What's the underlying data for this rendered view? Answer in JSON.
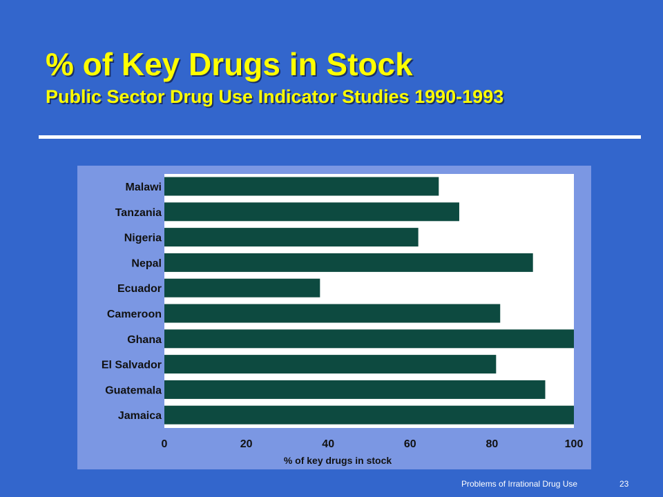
{
  "slide": {
    "title": "% of Key Drugs in Stock",
    "subtitle": "Public Sector Drug Use Indicator Studies 1990-1993",
    "footer": "Problems of Irrational Drug Use",
    "page_number": "23"
  },
  "colors": {
    "background": "#3366cc",
    "title": "#ffff00",
    "panel": "#7b97e3",
    "plot_area": "#ffffff",
    "bar": "#0d4a40"
  },
  "chart_data": {
    "type": "bar",
    "orientation": "horizontal",
    "categories": [
      "Malawi",
      "Tanzania",
      "Nigeria",
      "Nepal",
      "Ecuador",
      "Cameroon",
      "Ghana",
      "El Salvador",
      "Guatemala",
      "Jamaica"
    ],
    "values": [
      67,
      72,
      62,
      90,
      38,
      82,
      100,
      81,
      93,
      100
    ],
    "xlabel": "% of key drugs in stock",
    "xlim": [
      0,
      100
    ],
    "xticks": [
      0,
      20,
      40,
      60,
      80,
      100
    ],
    "grid": false,
    "legend": "none"
  }
}
